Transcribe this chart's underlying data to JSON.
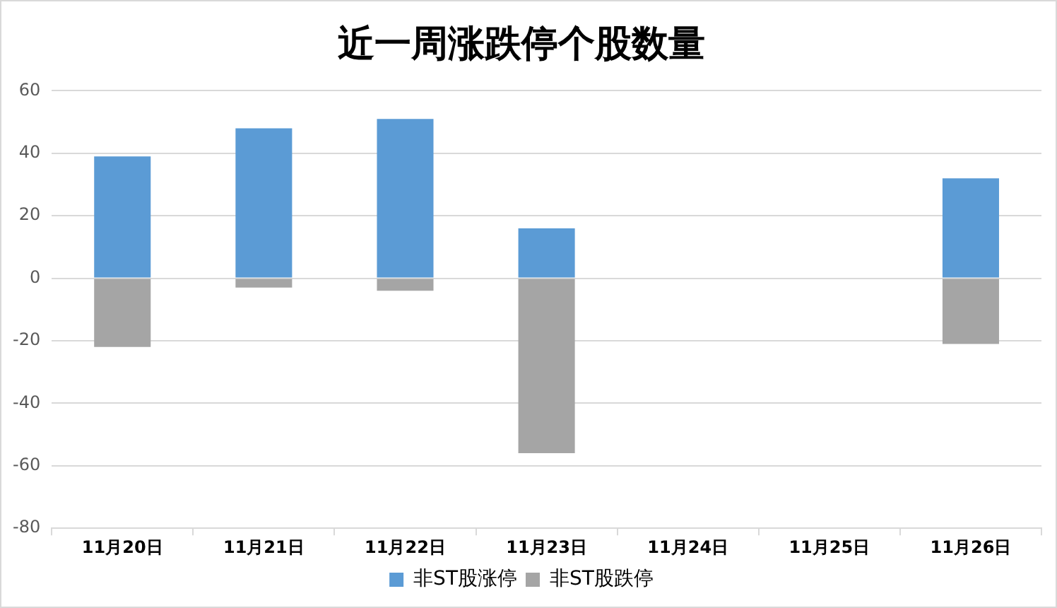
{
  "chart_data": {
    "type": "bar",
    "title": "近一周涨跌停个股数量",
    "categories": [
      "11月20日",
      "11月21日",
      "11月22日",
      "11月23日",
      "11月24日",
      "11月25日",
      "11月26日"
    ],
    "series": [
      {
        "name": "非ST股涨停",
        "color": "#5b9bd5",
        "values": [
          39,
          48,
          51,
          16,
          null,
          null,
          32
        ]
      },
      {
        "name": "非ST股跌停",
        "color": "#a5a5a5",
        "values": [
          -22,
          -3,
          -4,
          -56,
          null,
          null,
          -21
        ]
      }
    ],
    "stacked": true,
    "ylim": [
      -80,
      60
    ],
    "yticks": [
      -80,
      -60,
      -40,
      -20,
      0,
      20,
      40,
      60
    ],
    "grid": "y",
    "legend": "bottom"
  }
}
